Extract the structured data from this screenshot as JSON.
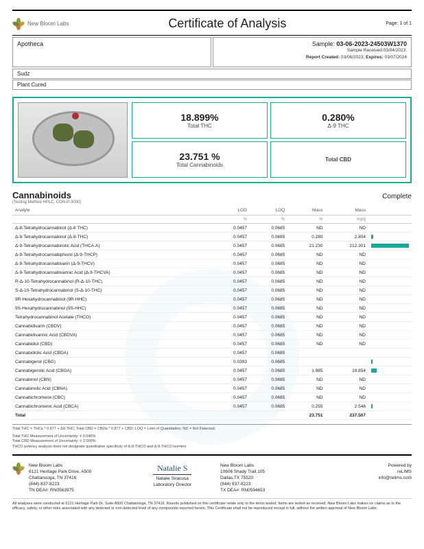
{
  "header": {
    "company": "New Bloom Labs",
    "title": "Certificate of Analysis",
    "page": "Page: 1 of 1"
  },
  "client": {
    "name": "Apotheca"
  },
  "sample": {
    "label": "Sample:",
    "id": "03-06-2023-24503W1370",
    "received_label": "Sample Received:",
    "received": "03/04/2023;",
    "created_label": "Report Created:",
    "created": "03/06/2023;",
    "expires_label": "Expires:",
    "expires": "03/07/2024"
  },
  "product": {
    "name": "Sudz",
    "type": "Plant Cured"
  },
  "metrics": [
    {
      "value": "18.899%",
      "label": "Total THC"
    },
    {
      "value": "0.280%",
      "label": "Δ-9 THC"
    },
    {
      "value": "23.751 %",
      "label": "Total Cannabinoids"
    },
    {
      "value": "<LOQ %",
      "label": "Total CBD"
    }
  ],
  "section": {
    "title": "Cannabinoids",
    "method": "(Testing Method HPLC, CON-P-3000)",
    "status": "Complete"
  },
  "columns": [
    "Analyte",
    "LOD",
    "LOQ",
    "Mass",
    "Mass",
    ""
  ],
  "units": [
    "",
    "%",
    "%",
    "%",
    "mg/g",
    ""
  ],
  "rows": [
    {
      "a": "Δ-8-Tetrahydrocannabinol (Δ-8 THC)",
      "lod": "0.0457",
      "loq": "0.0685",
      "m1": "ND",
      "m2": "ND",
      "bar": 0
    },
    {
      "a": "Δ-9-Tetrahydrocannabinol (Δ-9-THC)",
      "lod": "0.0457",
      "loq": "0.0685",
      "m1": "0.280",
      "m2": "2.804",
      "bar": 3
    },
    {
      "a": "Δ-9-Tetrahydrocannabinolic Acid (THCA-A)",
      "lod": "0.0457",
      "loq": "0.0685",
      "m1": "21.230",
      "m2": "212.301",
      "bar": 55
    },
    {
      "a": "Δ-9-Tetrahydrocannabiphorol (Δ-9-THCP)",
      "lod": "0.0457",
      "loq": "0.0685",
      "m1": "ND",
      "m2": "ND",
      "bar": 0
    },
    {
      "a": "Δ-9-Tetrahydrocannabivarin (Δ-9-THCV)",
      "lod": "0.0457",
      "loq": "0.0685",
      "m1": "ND",
      "m2": "ND",
      "bar": 0
    },
    {
      "a": "Δ-9-Tetrahydrocannabivarinic Acid (Δ-9-THCVA)",
      "lod": "0.0457",
      "loq": "0.0685",
      "m1": "ND",
      "m2": "ND",
      "bar": 0
    },
    {
      "a": "R-Δ-10-Tetrahydrocannabinol (R-Δ-10-THC)",
      "lod": "0.0457",
      "loq": "0.0685",
      "m1": "ND",
      "m2": "ND",
      "bar": 0
    },
    {
      "a": "S-Δ-10-Tetrahydrocannabinol (S-Δ-10-THC)",
      "lod": "0.0457",
      "loq": "0.0685",
      "m1": "ND",
      "m2": "ND",
      "bar": 0
    },
    {
      "a": "9R-Hexahydrocannabinol (9R-HHC)",
      "lod": "0.0457",
      "loq": "0.0685",
      "m1": "ND",
      "m2": "ND",
      "bar": 0
    },
    {
      "a": "9S-Hexahydrocannabinol (9S-HHC)",
      "lod": "0.0457",
      "loq": "0.0685",
      "m1": "ND",
      "m2": "ND",
      "bar": 0
    },
    {
      "a": "Tetrahydrocannabinol Acetate (THCO)",
      "lod": "0.0457",
      "loq": "0.0685",
      "m1": "ND",
      "m2": "ND",
      "bar": 0
    },
    {
      "a": "Cannabidivarin (CBDV)",
      "lod": "0.0457",
      "loq": "0.0685",
      "m1": "ND",
      "m2": "ND",
      "bar": 0
    },
    {
      "a": "Cannabidivarinic Acid (CBDVA)",
      "lod": "0.0457",
      "loq": "0.0685",
      "m1": "ND",
      "m2": "ND",
      "bar": 0
    },
    {
      "a": "Cannabidiol (CBD)",
      "lod": "0.0457",
      "loq": "0.0685",
      "m1": "ND",
      "m2": "ND",
      "bar": 0
    },
    {
      "a": "Cannabidiolic Acid (CBDA)",
      "lod": "0.0457",
      "loq": "0.0685",
      "m1": "<LOQ",
      "m2": "<LOQ",
      "bar": 0
    },
    {
      "a": "Cannabigerol (CBG)",
      "lod": "0.0393",
      "loq": "0.0685",
      "m1": "<LOQ",
      "m2": "<LOQ",
      "bar": 2
    },
    {
      "a": "Cannabigerolic Acid (CBGA)",
      "lod": "0.0457",
      "loq": "0.0685",
      "m1": "1.985",
      "m2": "19.854",
      "bar": 8
    },
    {
      "a": "Cannabinol (CBN)",
      "lod": "0.0457",
      "loq": "0.0685",
      "m1": "ND",
      "m2": "ND",
      "bar": 0
    },
    {
      "a": "Cannabinolic Acid (CBNA)",
      "lod": "0.0457",
      "loq": "0.0685",
      "m1": "ND",
      "m2": "ND",
      "bar": 0
    },
    {
      "a": "Cannabichromene (CBC)",
      "lod": "0.0457",
      "loq": "0.0685",
      "m1": "ND",
      "m2": "ND",
      "bar": 0
    },
    {
      "a": "Cannabichromenic Acid (CBCA)",
      "lod": "0.0457",
      "loq": "0.0685",
      "m1": "0.255",
      "m2": "2.548",
      "bar": 2
    }
  ],
  "total": {
    "a": "Total",
    "m1": "23.751",
    "m2": "237.507"
  },
  "notes": {
    "line1": "Total THC = THCa * 0.877 + Δ9-THC; Total CBD = CBDa * 0.877 + CBD; LOQ = Limit of Quantitation; ND = Not Detected.",
    "line2": "Total THC Measurement of Uncertainty: ± 0.040%",
    "line3": "Total CBD Measurement of Uncertainty: ± 2.000%",
    "line4": "THCO potency analysis does not designate quantitative specificity of Δ-8-THCO and Δ-9-THCO isomers"
  },
  "footer": {
    "lab": {
      "name": "New Bloom Labs",
      "addr1": "6121 Heritage Park Drive, A500",
      "addr2": "Chattanooga, TN 37416",
      "phone": "(844) 837-8223",
      "dea": "TN DEA#: RN0563975"
    },
    "sig": {
      "name": "Natalie Siracusa",
      "title": "Laboratory Director"
    },
    "lab2": {
      "name": "New Bloom Labs",
      "addr1": "10606 Shady Trail,105",
      "addr2": "Dallas,TX 75520",
      "phone": "(844) 837-8223",
      "dea": "TX DEA#: RN0594653"
    },
    "powered": {
      "label": "Powered by",
      "name": "reLIMS",
      "email": "info@relims.com"
    }
  },
  "disclaimer": "All analyses were conducted at 6121 Heritage Park Dr, Suite A500 Chattanooga, TN 37416. Results published on this certificate relate only to the items tested. Items are tested as received. New Bloom Labs makes no claims as to the efficacy, safety, or other risks associated with any detected or non-detected level of any compounds reported herein. This Certificate shall not be reproduced except in full, without the written approval of New Bloom Labs.",
  "colors": {
    "accent": "#1aa89a"
  }
}
